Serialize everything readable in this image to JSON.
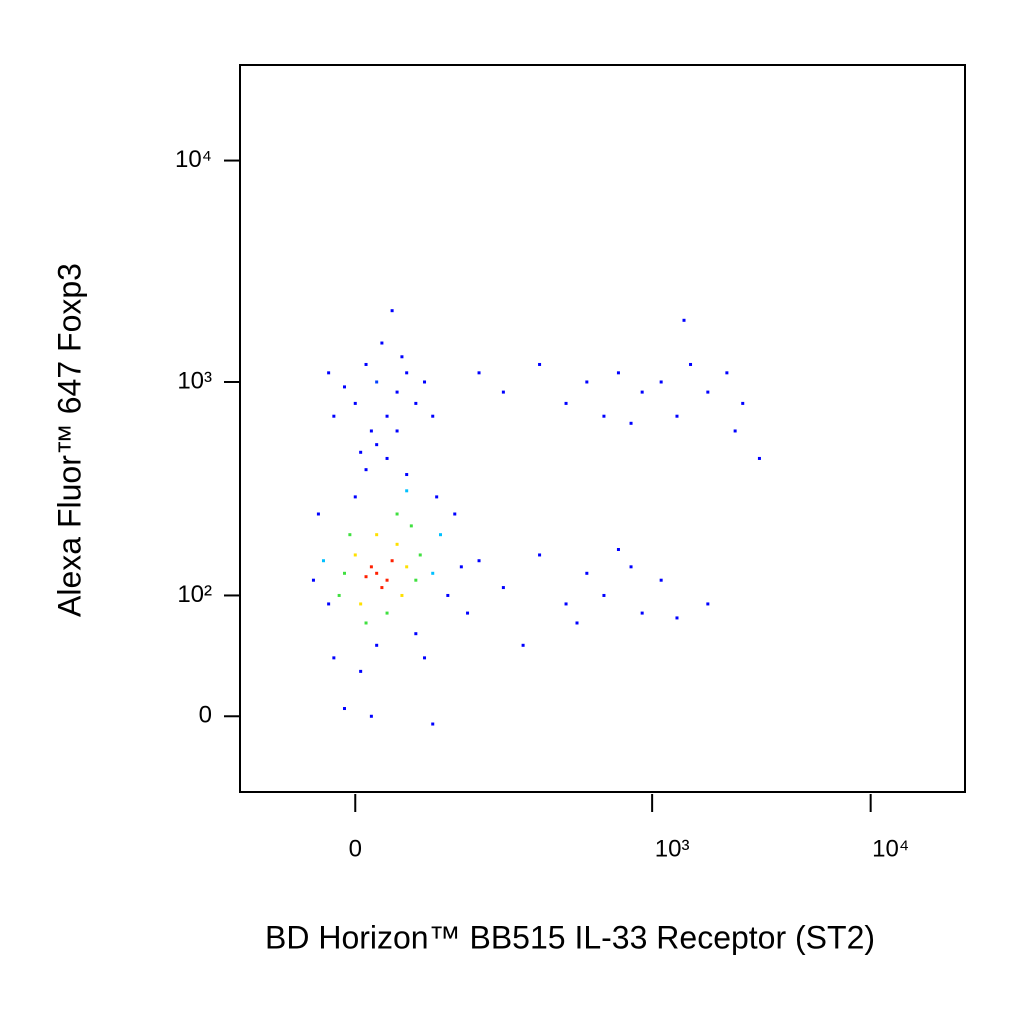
{
  "chart_data": {
    "type": "scatter",
    "x_label": "BD Horizon™ BB515 IL-33 Receptor (ST2)",
    "y_label": "Alexa Fluor™ 647 Foxp3",
    "xscale": "biexponential",
    "yscale": "biexponential",
    "xlim": [
      -135,
      27000
    ],
    "ylim": [
      -54,
      27000
    ],
    "xticks": [
      0,
      {
        "value": 1000,
        "label": "10³"
      },
      {
        "value": 10000,
        "label": "10⁴"
      }
    ],
    "yticks": [
      0,
      {
        "value": 100,
        "label": "10²"
      },
      {
        "value": 1000,
        "label": "10³"
      },
      {
        "value": 10000,
        "label": "10⁴"
      }
    ],
    "x": [
      20,
      30,
      15,
      25,
      35,
      10,
      0,
      45,
      5,
      40,
      20,
      50,
      -10,
      60,
      -5,
      55,
      30,
      10,
      65,
      -15,
      40,
      -30,
      80,
      -25,
      90,
      0,
      50,
      20,
      60,
      -35,
      100,
      120,
      -20,
      5,
      70,
      110,
      130,
      -40,
      85,
      10,
      30,
      20,
      40,
      5,
      50,
      0,
      20,
      40,
      10,
      30,
      -10,
      50,
      60,
      -20,
      25,
      45,
      70,
      15,
      35,
      80,
      -25,
      150,
      200,
      300,
      400,
      500,
      600,
      700,
      900,
      1100,
      1300,
      1500,
      1800,
      2200,
      2600,
      3100,
      2400,
      800,
      1400,
      150,
      200,
      300,
      400,
      500,
      600,
      700,
      900,
      1100,
      1300,
      1800,
      250,
      800,
      450,
      -10,
      15,
      80
    ],
    "y": [
      130,
      120,
      140,
      110,
      150,
      125,
      160,
      100,
      90,
      180,
      200,
      140,
      130,
      120,
      200,
      220,
      80,
      70,
      160,
      100,
      250,
      150,
      130,
      90,
      200,
      300,
      320,
      50,
      60,
      250,
      100,
      140,
      40,
      30,
      40,
      250,
      80,
      120,
      300,
      400,
      450,
      520,
      600,
      480,
      380,
      800,
      1000,
      900,
      1200,
      700,
      950,
      1100,
      800,
      700,
      1500,
      1300,
      1000,
      600,
      2100,
      700,
      1100,
      1100,
      900,
      1200,
      800,
      1000,
      700,
      1100,
      900,
      1000,
      700,
      1200,
      900,
      1100,
      800,
      450,
      600,
      650,
      1900,
      150,
      110,
      160,
      90,
      130,
      100,
      170,
      80,
      120,
      75,
      90,
      50,
      140,
      70,
      5,
      0,
      -5
    ],
    "colors": [
      "#ff2000",
      "#ff2000",
      "#ff2000",
      "#ff2000",
      "#ff2000",
      "#ff2000",
      "#ffe000",
      "#ffe000",
      "#ffe000",
      "#ffe000",
      "#ffe000",
      "#ffe000",
      "#40e040",
      "#40e040",
      "#40e040",
      "#40e040",
      "#40e040",
      "#40e040",
      "#40e040",
      "#40e040",
      "#40e040",
      "#00c0ff",
      "#00c0ff",
      "#0000ff",
      "#00c0ff",
      "#0000ff",
      "#00c0ff",
      "#0000ff",
      "#0000ff",
      "#0000ff",
      "#0000ff",
      "#0000ff",
      "#0000ff",
      "#0000ff",
      "#0000ff",
      "#0000ff",
      "#0000ff",
      "#0000ff",
      "#0000ff",
      "#0000ff",
      "#0000ff",
      "#0000ff",
      "#0000ff",
      "#0000ff",
      "#0000ff",
      "#0000ff",
      "#0040ff",
      "#0000ff",
      "#0000ff",
      "#0000ff",
      "#0000ff",
      "#0000ff",
      "#0000ff",
      "#0000ff",
      "#0000ff",
      "#0000ff",
      "#0000ff",
      "#0000ff",
      "#0000ff",
      "#0000ff",
      "#0000ff",
      "#0000ff",
      "#0000ff",
      "#0000ff",
      "#0000ff",
      "#0000ff",
      "#0000ff",
      "#0000ff",
      "#0000ff",
      "#0000ff",
      "#0000ff",
      "#0000ff",
      "#0000ff",
      "#0000ff",
      "#0000ff",
      "#0000ff",
      "#0000ff",
      "#0000ff",
      "#0000ff",
      "#0000ff",
      "#0000ff",
      "#0000ff",
      "#0000ff",
      "#0000ff",
      "#0000ff",
      "#0000ff",
      "#0000ff",
      "#0000ff",
      "#0000ff",
      "#0000ff",
      "#0000ff",
      "#0000ff",
      "#0000ff",
      "#0000ff",
      "#0000ff",
      "#0000ff"
    ]
  }
}
